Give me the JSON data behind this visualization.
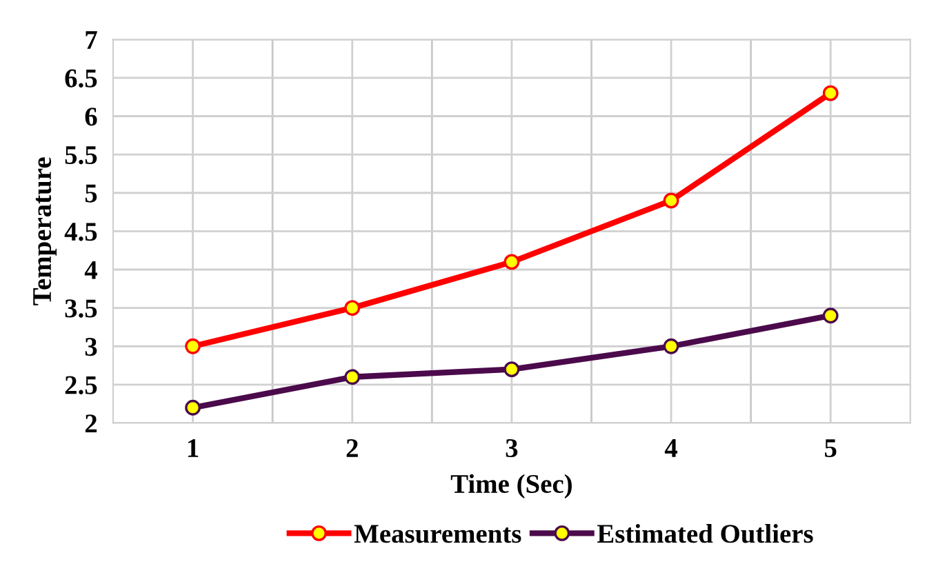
{
  "chart_data": {
    "type": "line",
    "xlabel": "Time (Sec)",
    "ylabel": "Temperature",
    "categories": [
      "1",
      "2",
      "3",
      "4",
      "5"
    ],
    "series": [
      {
        "name": "Measurements",
        "color": "#ff0000",
        "values": [
          3.0,
          3.5,
          4.1,
          4.9,
          6.3
        ]
      },
      {
        "name": "Estimated Outliers",
        "color": "#4b0a4b",
        "values": [
          2.2,
          2.6,
          2.7,
          3.0,
          3.4
        ]
      }
    ],
    "ylim": [
      2,
      7
    ],
    "yticks": [
      2,
      2.5,
      3,
      3.5,
      4,
      4.5,
      5,
      5.5,
      6,
      6.5,
      7
    ],
    "marker": "circle",
    "line_style": "solid",
    "grid": true,
    "legend": "bottom"
  }
}
